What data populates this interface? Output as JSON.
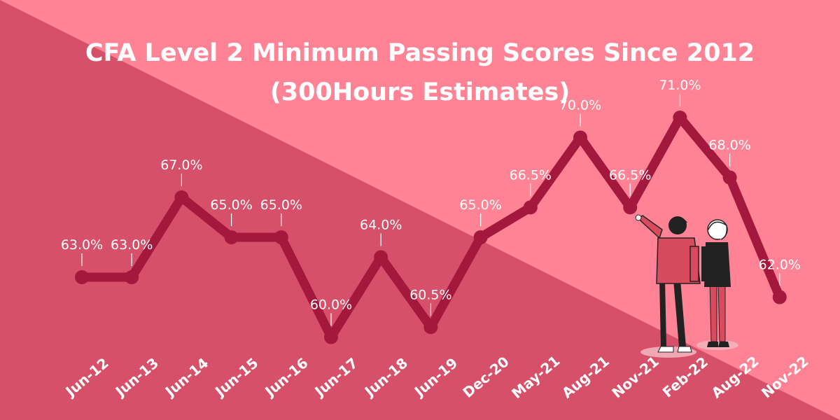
{
  "title_line1": "CFA Level 2 Minimum Passing Scores Since 2012",
  "title_line2": "(300Hours Estimates)",
  "colors": {
    "background_light": "#ff8394",
    "background_dark": "#d55068",
    "line": "#a3183c",
    "text": "#ffffff"
  },
  "chart_data": {
    "type": "line",
    "categories": [
      "Jun-12",
      "Jun-13",
      "Jun-14",
      "Jun-15",
      "Jun-16",
      "Jun-17",
      "Jun-18",
      "Jun-19",
      "Dec-20",
      "May-21",
      "Aug-21",
      "Nov-21",
      "Feb-22",
      "Aug-22",
      "Nov-22"
    ],
    "values": [
      63.0,
      63.0,
      67.0,
      65.0,
      65.0,
      60.0,
      64.0,
      60.5,
      65.0,
      66.5,
      70.0,
      66.5,
      71.0,
      68.0,
      62.0
    ],
    "data_labels": [
      "63.0%",
      "63.0%",
      "67.0%",
      "65.0%",
      "65.0%",
      "60.0%",
      "64.0%",
      "60.5%",
      "65.0%",
      "66.5%",
      "70.0%",
      "66.5%",
      "71.0%",
      "68.0%",
      "62.0%"
    ],
    "title": "CFA Level 2 Minimum Passing Scores Since 2012 (300Hours Estimates)",
    "xlabel": "",
    "ylabel": "",
    "grid": false,
    "legend": "none"
  },
  "illustration": "two-people-pointing-illustration"
}
